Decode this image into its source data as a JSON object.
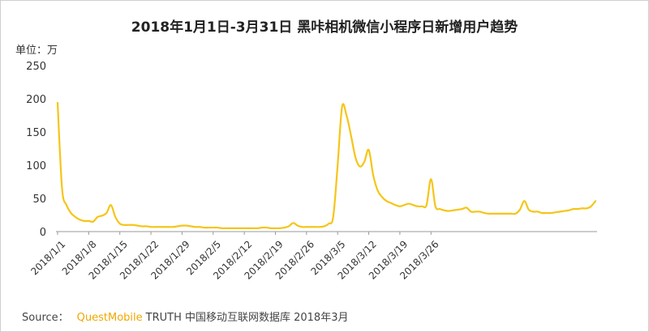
{
  "chart_data": {
    "type": "line",
    "title": "2018年1月1日-3月31日 黑咔相机微信小程序日新增用户趋势",
    "unit_label": "单位：万",
    "ylim": [
      0,
      250
    ],
    "yticks": [
      0,
      50,
      100,
      150,
      200,
      250
    ],
    "xtick_labels": [
      "2018/1/1",
      "2018/1/8",
      "2018/1/15",
      "2018/1/22",
      "2018/1/29",
      "2018/2/5",
      "2018/2/12",
      "2018/2/19",
      "2018/2/26",
      "2018/3/5",
      "2018/3/12",
      "2018/3/19",
      "2018/3/26"
    ],
    "line_color": "#f5c518",
    "grid": false,
    "series": [
      {
        "values": [
          194,
          65,
          40,
          28,
          22,
          18,
          16,
          16,
          15,
          22,
          24,
          28,
          40,
          22,
          12,
          10,
          10,
          10,
          9,
          8,
          8,
          7,
          7,
          7,
          7,
          7,
          7,
          8,
          9,
          9,
          8,
          7,
          7,
          6,
          6,
          6,
          6,
          5,
          5,
          5,
          5,
          5,
          5,
          5,
          5,
          5,
          6,
          6,
          5,
          5,
          5,
          6,
          8,
          13,
          9,
          7,
          7,
          7,
          7,
          7,
          8,
          12,
          22,
          100,
          188,
          175,
          145,
          112,
          98,
          105,
          123,
          85,
          62,
          52,
          46,
          43,
          40,
          38,
          40,
          42,
          40,
          38,
          38,
          40,
          79,
          38,
          34,
          32,
          31,
          32,
          33,
          34,
          36,
          30,
          30,
          30,
          28,
          27,
          27,
          27,
          27,
          27,
          27,
          27,
          33,
          46,
          33,
          30,
          30,
          28,
          28,
          28,
          29,
          30,
          31,
          32,
          34,
          34,
          35,
          35,
          38,
          46
        ]
      }
    ]
  },
  "footer": {
    "source_label": "Source：",
    "brand": "QuestMobile",
    "rest": "TRUTH 中国移动互联网数据库 2018年3月"
  }
}
